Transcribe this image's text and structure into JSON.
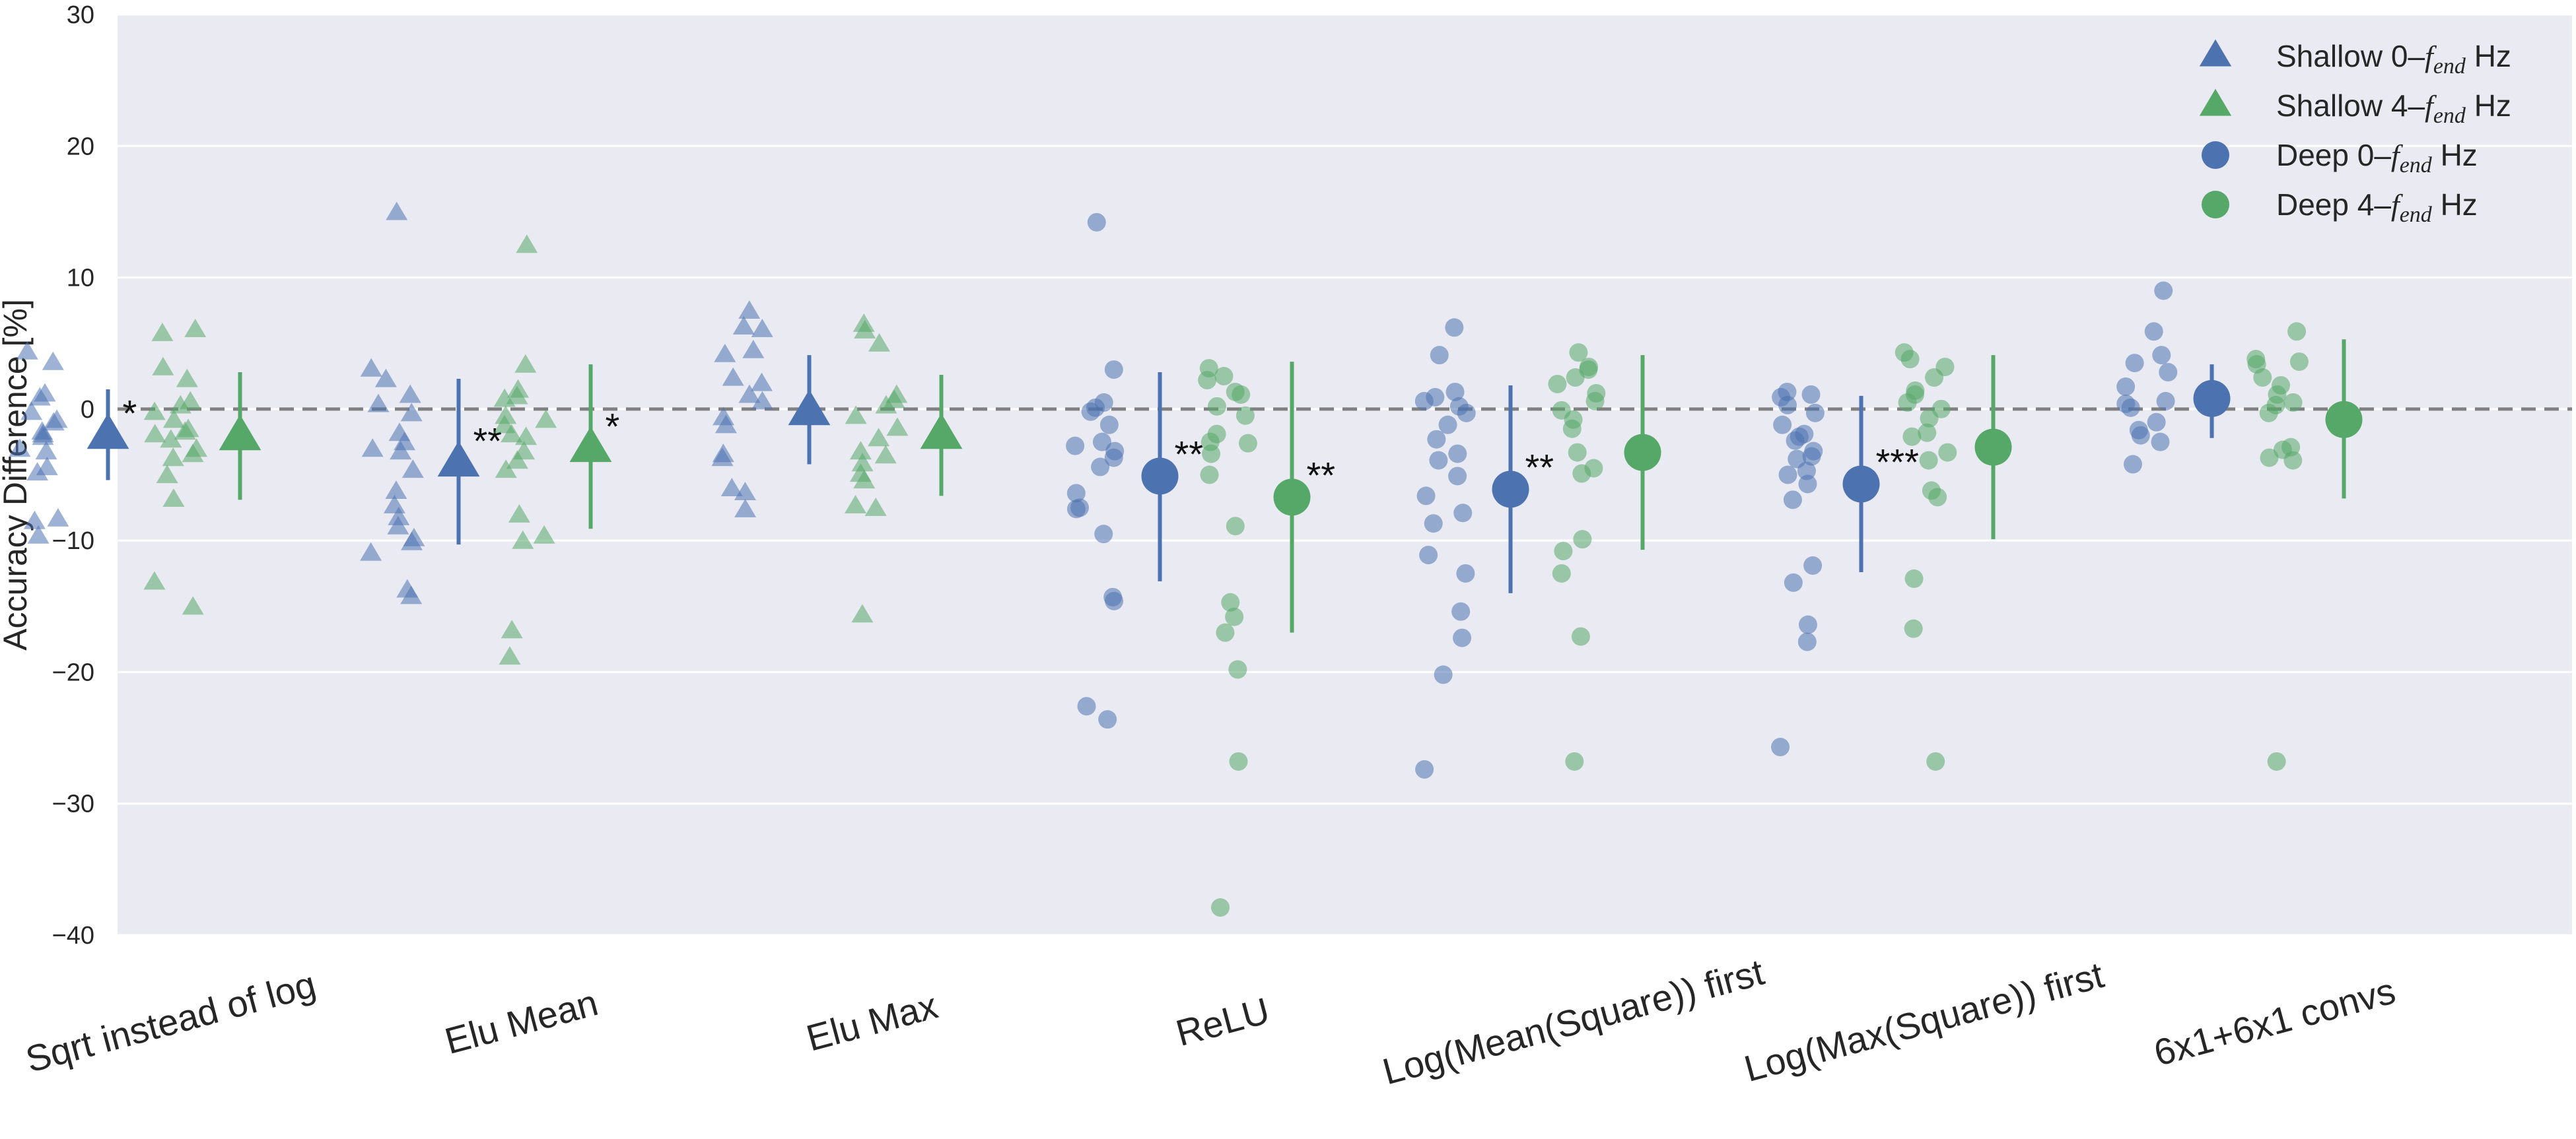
{
  "chart_data": {
    "type": "scatter",
    "ylabel": "Accuracy Difference [%]",
    "ylim": [
      -40,
      30
    ],
    "yticks": [
      -40,
      -30,
      -20,
      -10,
      0,
      10,
      20,
      30
    ],
    "ytick_labels": [
      "−40",
      "−30",
      "−20",
      "−10",
      "0",
      "10",
      "20",
      "30"
    ],
    "grid": true,
    "reference_line": 0,
    "legend_position": "top-right",
    "categories": [
      "Sqrt instead of log",
      "Elu Mean",
      "Elu Max",
      "ReLU",
      "Log(Mean(Square)) first",
      "Log(Max(Square)) first",
      "6x1+6x1 convs"
    ],
    "colors": {
      "blue": "#4c72b0",
      "green": "#55a868",
      "background": "#eaeaf2",
      "reference": "#808080"
    },
    "series": [
      {
        "name_prefix": "Shallow 0–",
        "name_var": "f",
        "name_sub": "end",
        "name_suffix": " Hz",
        "marker": "triangle",
        "color": "#4c72b0",
        "groups": [
          {
            "category": "Sqrt instead of log",
            "mean": -2.0,
            "err_low": -5.4,
            "err_high": 1.5,
            "significance": "*",
            "points": [
              4.3,
              3.5,
              1.1,
              0.8,
              -0.3,
              -0.9,
              -1.1,
              -1.8,
              -2.0,
              -2.2,
              -3.1,
              -3.3,
              -4.5,
              -4.9,
              -8.4,
              -8.6,
              -9.7
            ]
          },
          {
            "category": "Elu Mean",
            "mean": -4.1,
            "err_low": -10.3,
            "err_high": 2.3,
            "significance": "**",
            "points": [
              14.9,
              3.0,
              2.2,
              1.0,
              0.3,
              -0.4,
              -1.9,
              -2.6,
              -3.1,
              -3.3,
              -4.7,
              -6.3,
              -7.4,
              -8.3,
              -9.0,
              -9.9,
              -10.2,
              -11.0,
              -13.8,
              -14.3
            ]
          },
          {
            "category": "Elu Max",
            "mean": -0.2,
            "err_low": -4.2,
            "err_high": 4.1,
            "significance": "",
            "points": [
              7.4,
              6.2,
              6.0,
              4.4,
              4.1,
              2.3,
              1.9,
              1.0,
              0.5,
              -0.7,
              -1.3,
              -3.5,
              -3.8,
              -6.1,
              -6.4,
              -7.7
            ]
          },
          {
            "category": "ReLU",
            "mean": -5.1,
            "err_low": -13.1,
            "err_high": 2.8,
            "significance": "**",
            "points": [
              14.2,
              3.0,
              0.5,
              0.1,
              -0.2,
              -1.2,
              -2.5,
              -2.8,
              -3.2,
              -3.7,
              -4.4,
              -6.4,
              -7.5,
              -7.6,
              -9.5,
              -14.3,
              -14.6,
              -22.6,
              -23.6
            ]
          },
          {
            "category": "Log(Mean(Square)) first",
            "mean": -6.1,
            "err_low": -14.0,
            "err_high": 1.8,
            "significance": "**",
            "points": [
              6.2,
              4.1,
              1.3,
              0.9,
              0.6,
              0.2,
              -0.3,
              -1.2,
              -2.3,
              -3.4,
              -3.9,
              -5.1,
              -6.6,
              -7.9,
              -8.7,
              -11.1,
              -12.5,
              -15.4,
              -17.4,
              -20.2,
              -27.4
            ]
          },
          {
            "category": "Log(Max(Square)) first",
            "mean": -5.7,
            "err_low": -12.4,
            "err_high": 1.0,
            "significance": "***",
            "points": [
              1.3,
              1.1,
              0.9,
              0.3,
              -0.3,
              -1.2,
              -1.9,
              -2.1,
              -2.4,
              -3.2,
              -3.6,
              -3.8,
              -4.7,
              -5.0,
              -5.7,
              -6.9,
              -11.9,
              -13.2,
              -16.4,
              -17.7,
              -25.7
            ]
          },
          {
            "category": "6x1+6x1 convs",
            "mean": 0.8,
            "err_low": -2.2,
            "err_high": 3.4,
            "significance": "",
            "points": [
              9.0,
              5.9,
              4.1,
              3.5,
              2.8,
              1.7,
              0.6,
              0.4,
              0.1,
              -1.0,
              -1.6,
              -2.0,
              -2.5,
              -4.2
            ]
          }
        ]
      },
      {
        "name_prefix": "Shallow 4–",
        "name_var": "f",
        "name_sub": "end",
        "name_suffix": " Hz",
        "marker": "triangle",
        "color": "#55a868",
        "groups": [
          {
            "category": "Sqrt instead of log",
            "mean": -2.1,
            "err_low": -6.9,
            "err_high": 2.8,
            "significance": "",
            "points": [
              6.0,
              5.7,
              3.1,
              2.2,
              0.5,
              0.2,
              -0.3,
              -0.9,
              -1.6,
              -1.8,
              -2.0,
              -2.4,
              -3.1,
              -3.5,
              -3.8,
              -5.1,
              -6.9,
              -13.2,
              -15.1
            ]
          },
          {
            "category": "Elu Mean",
            "mean": -3.0,
            "err_low": -9.1,
            "err_high": 3.4,
            "significance": "*",
            "points": [
              12.4,
              3.3,
              1.4,
              0.9,
              0.7,
              -0.6,
              -0.9,
              -1.3,
              -2.0,
              -2.2,
              -3.3,
              -4.0,
              -4.7,
              -8.1,
              -9.7,
              -10.1,
              -16.9,
              -18.9
            ]
          },
          {
            "category": "Elu Max",
            "mean": -2.0,
            "err_low": -6.6,
            "err_high": 2.6,
            "significance": "",
            "points": [
              6.4,
              5.9,
              4.9,
              1.0,
              0.6,
              0.2,
              -0.6,
              -1.5,
              -2.3,
              -3.3,
              -3.6,
              -4.2,
              -5.0,
              -5.5,
              -7.4,
              -7.6,
              -15.7
            ]
          },
          {
            "category": "ReLU",
            "mean": -6.7,
            "err_low": -17.0,
            "err_high": 3.6,
            "significance": "**",
            "points": [
              3.1,
              2.5,
              2.2,
              1.3,
              1.1,
              0.2,
              -0.5,
              -1.9,
              -2.5,
              -2.6,
              -3.4,
              -5.0,
              -8.9,
              -14.7,
              -15.8,
              -17.0,
              -19.8,
              -26.8,
              -37.9
            ]
          },
          {
            "category": "Log(Mean(Square)) first",
            "mean": -3.3,
            "err_low": -10.7,
            "err_high": 4.1,
            "significance": "",
            "points": [
              4.3,
              3.2,
              3.0,
              2.4,
              1.9,
              1.2,
              0.6,
              -0.1,
              -0.8,
              -1.5,
              -3.3,
              -4.5,
              -4.9,
              -9.9,
              -10.8,
              -12.5,
              -17.3,
              -26.8
            ]
          },
          {
            "category": "Log(Max(Square)) first",
            "mean": -2.9,
            "err_low": -9.9,
            "err_high": 4.1,
            "significance": "",
            "points": [
              4.3,
              3.8,
              3.2,
              2.4,
              1.4,
              1.1,
              0.5,
              0.0,
              -0.7,
              -1.8,
              -2.1,
              -3.3,
              -3.9,
              -6.2,
              -6.7,
              -12.9,
              -16.7,
              -26.8
            ]
          },
          {
            "category": "6x1+6x1 convs",
            "mean": -0.8,
            "err_low": -6.8,
            "err_high": 5.3,
            "significance": "",
            "points": [
              5.9,
              3.8,
              3.6,
              3.4,
              2.4,
              1.8,
              1.1,
              0.5,
              0.3,
              -0.3,
              -2.9,
              -3.1,
              -3.7,
              -3.9,
              -26.8
            ]
          }
        ]
      }
    ],
    "legend": [
      {
        "prefix": "Shallow 0–",
        "var": "f",
        "sub": "end",
        "suffix": " Hz",
        "marker": "triangle",
        "color": "#4c72b0"
      },
      {
        "prefix": "Shallow 4–",
        "var": "f",
        "sub": "end",
        "suffix": " Hz",
        "marker": "triangle",
        "color": "#55a868"
      },
      {
        "prefix": "Deep 0–",
        "var": "f",
        "sub": "end",
        "suffix": " Hz",
        "marker": "circle",
        "color": "#4c72b0"
      },
      {
        "prefix": "Deep 4–",
        "var": "f",
        "sub": "end",
        "suffix": " Hz",
        "marker": "circle",
        "color": "#55a868"
      }
    ]
  }
}
